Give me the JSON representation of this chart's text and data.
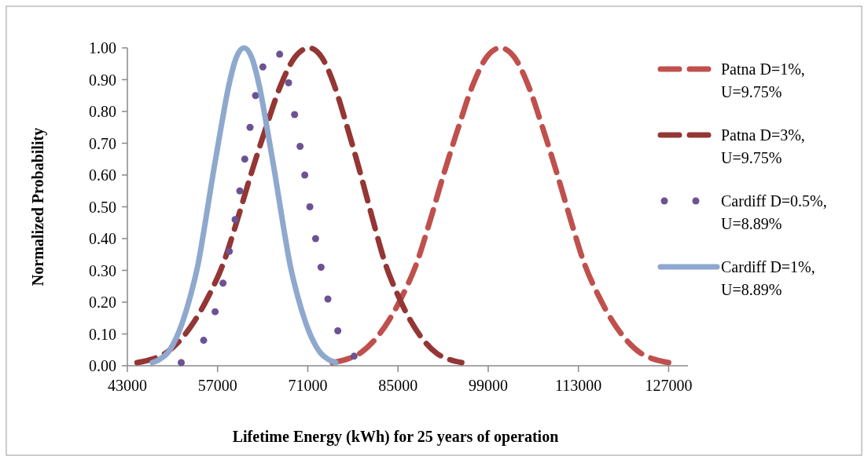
{
  "chart_data": {
    "type": "line",
    "xlabel": "Lifetime Energy (kWh) for 25 years of operation",
    "ylabel": "Normalized Probability",
    "xlim": [
      43000,
      130000
    ],
    "xticks": [
      43000,
      57000,
      71000,
      85000,
      99000,
      113000,
      127000
    ],
    "ylim": [
      0,
      1
    ],
    "yticks": [
      {
        "value": 0,
        "label": "0.00"
      },
      {
        "value": 0.1,
        "label": "0.10"
      },
      {
        "value": 0.2,
        "label": "0.20"
      },
      {
        "value": 0.3,
        "label": "0.30"
      },
      {
        "value": 0.4,
        "label": "0.40"
      },
      {
        "value": 0.5,
        "label": "0.50"
      },
      {
        "value": 0.6,
        "label": "0.60"
      },
      {
        "value": 0.7,
        "label": "0.70"
      },
      {
        "value": 0.8,
        "label": "0.80"
      },
      {
        "value": 0.9,
        "label": "0.90"
      },
      {
        "value": 1,
        "label": "1.00"
      }
    ],
    "grid": false,
    "legend": "right",
    "series": [
      {
        "name": "Patna D=1%, U=9.75%",
        "line_style": "dashed",
        "color": "#c0504d",
        "x": [
          74800,
          76980,
          79150,
          81330,
          83500,
          85680,
          87850,
          90030,
          92200,
          94380,
          96550,
          98730,
          100900,
          103080,
          105250,
          107430,
          109600,
          111780,
          113950,
          116130,
          118300,
          120480,
          122650,
          124830,
          127000
        ],
        "values": [
          0.01,
          0.02,
          0.04,
          0.08,
          0.14,
          0.22,
          0.32,
          0.46,
          0.61,
          0.75,
          0.88,
          0.97,
          1.0,
          0.97,
          0.88,
          0.75,
          0.61,
          0.46,
          0.32,
          0.22,
          0.14,
          0.08,
          0.04,
          0.02,
          0.01
        ]
      },
      {
        "name": "Patna D=3%, U=9.75%",
        "line_style": "dashed",
        "color": "#943634",
        "x": [
          44500,
          46730,
          48950,
          51180,
          53400,
          55630,
          57850,
          60080,
          62300,
          64530,
          66750,
          68980,
          71200,
          73180,
          75150,
          77130,
          79100,
          81080,
          83050,
          85030,
          87000,
          88980,
          90950,
          92930,
          94900
        ],
        "values": [
          0.01,
          0.02,
          0.04,
          0.08,
          0.14,
          0.22,
          0.32,
          0.46,
          0.61,
          0.75,
          0.88,
          0.97,
          1.0,
          0.97,
          0.88,
          0.75,
          0.61,
          0.46,
          0.32,
          0.22,
          0.14,
          0.08,
          0.04,
          0.02,
          0.01
        ]
      },
      {
        "name": "Cardiff D=0.5%, U=8.89%",
        "type": "scatter",
        "marker": "circle",
        "color": "#6b5393",
        "x": [
          51360,
          54840,
          56620,
          57840,
          58820,
          59720,
          60450,
          61220,
          62040,
          62890,
          64030,
          66630,
          68020,
          68950,
          69800,
          70530,
          71320,
          72210,
          73060,
          74120,
          75660,
          78190
        ],
        "values": [
          0.01,
          0.08,
          0.17,
          0.26,
          0.36,
          0.46,
          0.55,
          0.65,
          0.75,
          0.85,
          0.94,
          0.98,
          0.89,
          0.79,
          0.69,
          0.6,
          0.5,
          0.4,
          0.31,
          0.21,
          0.11,
          0.03
        ]
      },
      {
        "name": "Cardiff D=1%, U=8.89%",
        "line_style": "solid",
        "color": "#8ea8ce",
        "x": [
          46850,
          47990,
          49230,
          50410,
          51600,
          52790,
          53980,
          55160,
          56350,
          57540,
          58730,
          59910,
          61100,
          62290,
          63480,
          64660,
          65850,
          67040,
          68230,
          69410,
          70600,
          71790,
          72980,
          74160,
          75350
        ],
        "values": [
          0.01,
          0.02,
          0.04,
          0.08,
          0.14,
          0.22,
          0.32,
          0.46,
          0.61,
          0.75,
          0.88,
          0.97,
          1.0,
          0.97,
          0.88,
          0.75,
          0.61,
          0.46,
          0.32,
          0.22,
          0.14,
          0.08,
          0.04,
          0.02,
          0.01
        ]
      }
    ]
  }
}
